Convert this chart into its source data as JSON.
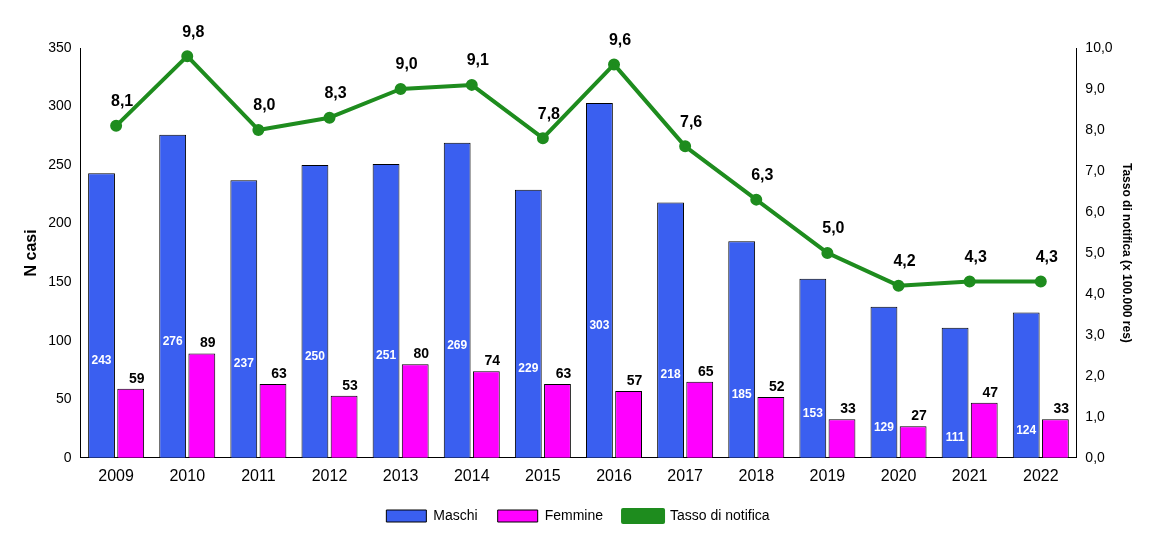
{
  "chart_data": {
    "type": "bar",
    "categories": [
      "2009",
      "2010",
      "2011",
      "2012",
      "2013",
      "2014",
      "2015",
      "2016",
      "2017",
      "2018",
      "2019",
      "2020",
      "2021",
      "2022"
    ],
    "series": [
      {
        "name": "Maschi",
        "color": "#3a5ff0",
        "values": [
          243,
          276,
          237,
          250,
          251,
          269,
          229,
          303,
          218,
          185,
          153,
          129,
          111,
          124
        ],
        "value_labels": [
          "243",
          "276",
          "237",
          "250",
          "251",
          "269",
          "229",
          "303",
          "218",
          "185",
          "153",
          "129",
          "111",
          "124"
        ]
      },
      {
        "name": "Femmine",
        "color": "#ff00ff",
        "values": [
          59,
          89,
          63,
          53,
          80,
          74,
          63,
          57,
          65,
          52,
          33,
          27,
          47,
          33
        ],
        "value_labels": [
          "59",
          "89",
          "63",
          "53",
          "80",
          "74",
          "63",
          "57",
          "65",
          "52",
          "33",
          "27",
          "47",
          "33"
        ]
      },
      {
        "name": "Tasso di notifica",
        "type": "line",
        "axis": "y2",
        "color": "#1e8c1e",
        "values": [
          8.1,
          9.8,
          8.0,
          8.3,
          9.0,
          9.1,
          7.8,
          9.6,
          7.6,
          6.3,
          5.0,
          4.2,
          4.3,
          4.3
        ],
        "value_labels": [
          "8,1",
          "9,8",
          "8,0",
          "8,3",
          "9,0",
          "9,1",
          "7,8",
          "9,6",
          "7,6",
          "6,3",
          "5,0",
          "4,2",
          "4,3",
          "4,3"
        ]
      }
    ],
    "ylabel": "N casi",
    "y2label": "Tasso di notifica (x 100.000 res)",
    "ylim": [
      0,
      350
    ],
    "yticks": [
      0,
      50,
      100,
      150,
      200,
      250,
      300,
      350
    ],
    "y2lim": [
      0,
      10
    ],
    "y2ticks": [
      {
        "value": 0,
        "label": "0,0"
      },
      {
        "value": 1,
        "label": "1,0"
      },
      {
        "value": 2,
        "label": "2,0"
      },
      {
        "value": 3,
        "label": "3,0"
      },
      {
        "value": 4,
        "label": "4,0"
      },
      {
        "value": 5,
        "label": "5,0"
      },
      {
        "value": 6,
        "label": "6,0"
      },
      {
        "value": 7,
        "label": "7,0"
      },
      {
        "value": 8,
        "label": "8,0"
      },
      {
        "value": 9,
        "label": "9,0"
      },
      {
        "value": 10,
        "label": "10,0"
      }
    ],
    "grid": false,
    "legend": "bottom",
    "marker": "circle",
    "line_style": "solid"
  }
}
